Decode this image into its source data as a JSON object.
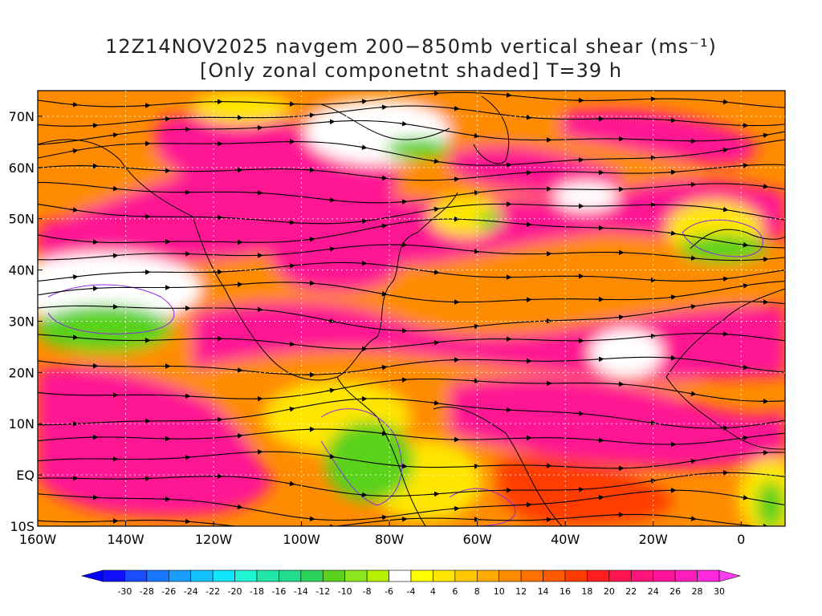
{
  "title": {
    "line1": "12Z14NOV2025 navgem 200−850mb vertical shear (ms⁻¹)",
    "line2": "[Only zonal componetnt shaded] T=39 h"
  },
  "lat_labels": [
    "70N",
    "60N",
    "50N",
    "40N",
    "30N",
    "20N",
    "10N",
    "EQ",
    "10S"
  ],
  "lat_values": [
    70,
    60,
    50,
    40,
    30,
    20,
    10,
    0,
    -10
  ],
  "lon_labels": [
    "160W",
    "140W",
    "120W",
    "100W",
    "80W",
    "60W",
    "40W",
    "20W",
    "0"
  ],
  "lon_values": [
    -160,
    -140,
    -120,
    -100,
    -80,
    -60,
    -40,
    -20,
    0
  ],
  "colorbar": {
    "labels": [
      "-30",
      "-28",
      "-26",
      "-24",
      "-22",
      "-20",
      "-18",
      "-16",
      "-14",
      "-12",
      "-10",
      "-8",
      "-6",
      "-4",
      "4",
      "6",
      "8",
      "10",
      "12",
      "14",
      "16",
      "18",
      "20",
      "22",
      "24",
      "26",
      "28",
      "30"
    ],
    "colors": [
      "#1010ff",
      "#1a4dff",
      "#1a75ff",
      "#1a9dff",
      "#12c3ff",
      "#12e6ff",
      "#1ff5d2",
      "#22e6a8",
      "#22dc8c",
      "#2ad25a",
      "#5ad21e",
      "#8ce61e",
      "#b4f000",
      "#ffffff",
      "#ffff00",
      "#ffe600",
      "#ffc800",
      "#ffaa00",
      "#ff8c00",
      "#ff7200",
      "#ff5a00",
      "#ff3c00",
      "#ff1e1e",
      "#ff1450",
      "#ff147a",
      "#ff149b",
      "#ff1ebc",
      "#ff28dc"
    ],
    "under_color": "#0000ff",
    "over_color": "#ff3cf0"
  },
  "map_colors": {
    "white_band": "#ffffff",
    "yellow": "#ffe600",
    "orange": "#ff8c00",
    "red": "#ff3c00",
    "magenta": "#ff1493",
    "green": "#5ad21e",
    "teal": "#22dc8c",
    "coast": "#000000",
    "contour": "#8a2be2"
  }
}
